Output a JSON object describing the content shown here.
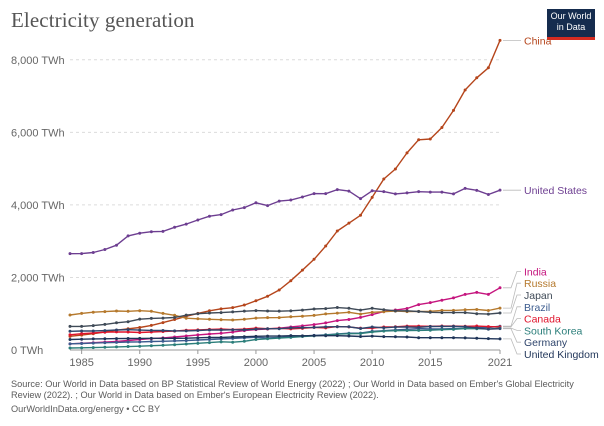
{
  "title": "Electricity generation",
  "logo": {
    "line1": "Our World",
    "line2": "in Data"
  },
  "source": "Source: Our World in Data based on BP Statistical Review of World Energy (2022) ; Our World in Data based on Ember's Global Electricity Review (2022). ; Our World in Data based on Ember's European Electricity Review (2022).",
  "footer": "OurWorldInData.org/energy • CC BY",
  "chart_data": {
    "type": "line",
    "title": "Electricity generation",
    "xlabel": "",
    "ylabel": "",
    "xlim": [
      1984,
      2021
    ],
    "ylim": [
      0,
      8600
    ],
    "grid": "horizontal dashed",
    "legend": "right, labels at line ends",
    "y_ticks": [
      0,
      2000,
      4000,
      6000,
      8000
    ],
    "y_tick_labels": [
      "0 TWh",
      "2,000 TWh",
      "4,000 TWh",
      "6,000 TWh",
      "8,000 TWh"
    ],
    "x_ticks": [
      1985,
      1990,
      1995,
      2000,
      2005,
      2010,
      2015,
      2021
    ],
    "x_tick_labels": [
      "1985",
      "1990",
      "1995",
      "2000",
      "2005",
      "2010",
      "2015",
      "2021"
    ],
    "x": [
      1984,
      1985,
      1986,
      1987,
      1988,
      1989,
      1990,
      1991,
      1992,
      1993,
      1994,
      1995,
      1996,
      1997,
      1998,
      1999,
      2000,
      2001,
      2002,
      2003,
      2004,
      2005,
      2006,
      2007,
      2008,
      2009,
      2010,
      2011,
      2012,
      2013,
      2014,
      2015,
      2016,
      2017,
      2018,
      2019,
      2020,
      2021
    ],
    "series": [
      {
        "name": "China",
        "color": "#b5451b",
        "values": [
          377,
          411,
          449,
          497,
          545,
          585,
          621,
          678,
          754,
          839,
          928,
          1008,
          1081,
          1135,
          1167,
          1239,
          1356,
          1480,
          1654,
          1910,
          2200,
          2500,
          2865,
          3281,
          3496,
          3714,
          4208,
          4713,
          4988,
          5432,
          5795,
          5815,
          6133,
          6604,
          7166,
          7503,
          7779,
          8534
        ]
      },
      {
        "name": "United States",
        "color": "#6d3e91",
        "values": [
          2655,
          2657,
          2687,
          2770,
          2888,
          3146,
          3219,
          3260,
          3270,
          3382,
          3469,
          3583,
          3688,
          3733,
          3858,
          3924,
          4058,
          3979,
          4105,
          4133,
          4216,
          4311,
          4309,
          4421,
          4379,
          4171,
          4388,
          4365,
          4303,
          4330,
          4364,
          4351,
          4351,
          4302,
          4455,
          4401,
          4286,
          4406
        ]
      },
      {
        "name": "India",
        "color": "#c5157e",
        "values": [
          170,
          185,
          200,
          217,
          237,
          261,
          290,
          313,
          334,
          358,
          387,
          417,
          441,
          461,
          494,
          534,
          562,
          580,
          602,
          633,
          666,
          699,
          746,
          810,
          841,
          899,
          975,
          1058,
          1101,
          1143,
          1251,
          1305,
          1372,
          1437,
          1533,
          1587,
          1533,
          1715
        ]
      },
      {
        "name": "Russia",
        "color": "#b5792d",
        "values": [
          965,
          1009,
          1041,
          1059,
          1074,
          1068,
          1082,
          1068,
          1009,
          957,
          876,
          860,
          847,
          834,
          827,
          846,
          878,
          891,
          892,
          916,
          932,
          953,
          996,
          1015,
          1040,
          990,
          1038,
          1055,
          1071,
          1059,
          1064,
          1068,
          1091,
          1091,
          1109,
          1118,
          1089,
          1154
        ]
      },
      {
        "name": "Japan",
        "color": "#3f4a57",
        "values": [
          650,
          650,
          672,
          705,
          750,
          780,
          850,
          870,
          880,
          895,
          960,
          1000,
          1020,
          1030,
          1050,
          1070,
          1085,
          1075,
          1070,
          1080,
          1100,
          1130,
          1140,
          1170,
          1150,
          1100,
          1150,
          1110,
          1080,
          1080,
          1060,
          1040,
          1030,
          1030,
          1030,
          1000,
          990,
          1020
        ]
      },
      {
        "name": "Brazil",
        "color": "#3b5b8e",
        "values": [
          170,
          180,
          190,
          200,
          210,
          220,
          222,
          235,
          240,
          250,
          260,
          275,
          290,
          305,
          320,
          335,
          350,
          330,
          345,
          365,
          387,
          403,
          420,
          445,
          463,
          466,
          516,
          532,
          553,
          570,
          590,
          581,
          579,
          589,
          601,
          626,
          621,
          656
        ]
      },
      {
        "name": "Canada",
        "color": "#e0142c",
        "values": [
          420,
          450,
          470,
          490,
          500,
          495,
          482,
          495,
          510,
          520,
          545,
          555,
          568,
          577,
          562,
          576,
          603,
          587,
          598,
          582,
          597,
          624,
          610,
          644,
          637,
          602,
          602,
          634,
          640,
          658,
          658,
          652,
          660,
          659,
          654,
          660,
          646,
          637
        ]
      },
      {
        "name": "South Korea",
        "color": "#2b7e7a",
        "values": [
          55,
          60,
          65,
          75,
          85,
          95,
          105,
          118,
          130,
          145,
          165,
          184,
          205,
          225,
          215,
          240,
          289,
          310,
          330,
          348,
          371,
          389,
          409,
          436,
          448,
          454,
          496,
          521,
          531,
          537,
          540,
          545,
          560,
          570,
          592,
          586,
          577,
          604
        ]
      },
      {
        "name": "Germany",
        "color": "#2f456c",
        "values": [
          516,
          523,
          525,
          535,
          550,
          560,
          549,
          540,
          538,
          527,
          527,
          537,
          553,
          552,
          556,
          556,
          577,
          587,
          587,
          609,
          617,
          622,
          639,
          641,
          640,
          594,
          633,
          613,
          630,
          638,
          627,
          648,
          651,
          654,
          643,
          609,
          574,
          588
        ]
      },
      {
        "name": "United Kingdom",
        "color": "#1f3458",
        "values": [
          290,
          298,
          305,
          310,
          315,
          318,
          320,
          322,
          320,
          322,
          325,
          335,
          348,
          345,
          362,
          366,
          377,
          383,
          384,
          395,
          391,
          396,
          394,
          395,
          385,
          373,
          382,
          368,
          364,
          359,
          338,
          338,
          339,
          338,
          333,
          323,
          312,
          307
        ]
      }
    ]
  }
}
